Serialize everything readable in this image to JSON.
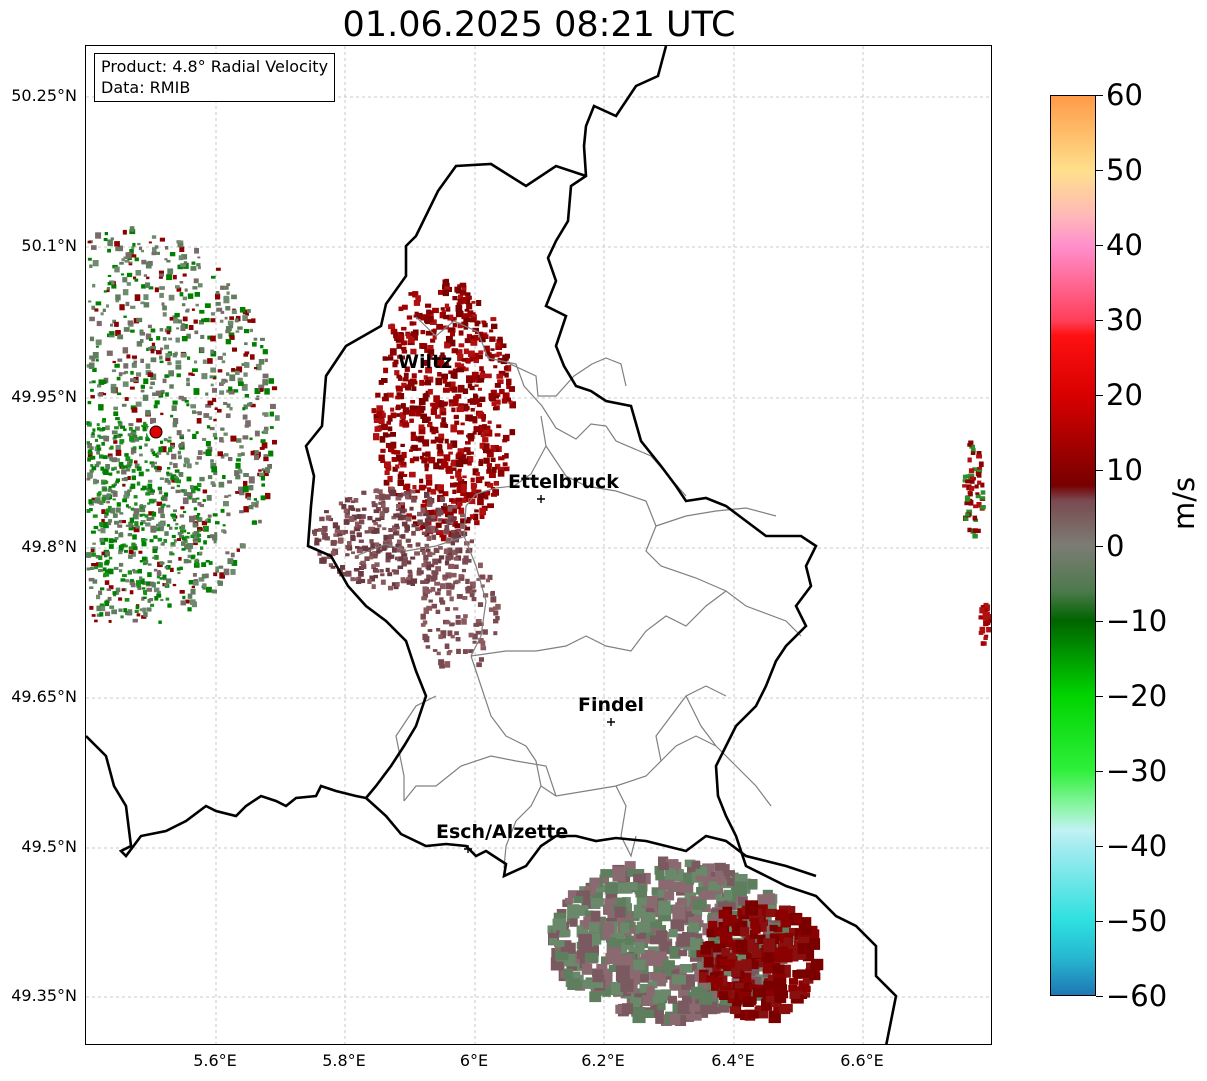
{
  "title": "01.06.2025 08:21 UTC",
  "infobox": {
    "product": "Product: 4.8° Radial Velocity",
    "source": "Data: RMIB"
  },
  "axes": {
    "lat_labels": [
      "50.25°N",
      "50.1°N",
      "49.95°N",
      "49.8°N",
      "49.65°N",
      "49.5°N",
      "49.35°N"
    ],
    "lon_labels": [
      "5.6°E",
      "5.8°E",
      "6°E",
      "6.2°E",
      "6.4°E",
      "6.6°E"
    ]
  },
  "cities": [
    {
      "name": "Wiltz"
    },
    {
      "name": "Ettelbruck"
    },
    {
      "name": "Findel"
    },
    {
      "name": "Esch/Alzette"
    }
  ],
  "colorbar": {
    "unit": "m/s",
    "min": -60,
    "max": 60,
    "tick_labels": [
      "60",
      "50",
      "40",
      "30",
      "20",
      "10",
      "0",
      "−10",
      "−20",
      "−30",
      "−40",
      "−50",
      "−60"
    ],
    "stops": [
      {
        "v": -60,
        "c": "#1f77b4"
      },
      {
        "v": -55,
        "c": "#26b8d0"
      },
      {
        "v": -50,
        "c": "#2fe0e0"
      },
      {
        "v": -40,
        "c": "#a6ecf0"
      },
      {
        "v": -38,
        "c": "#c2f2f4"
      },
      {
        "v": -35,
        "c": "#8ef5a8"
      },
      {
        "v": -30,
        "c": "#2ef03a"
      },
      {
        "v": -20,
        "c": "#00d400"
      },
      {
        "v": -10,
        "c": "#006400"
      },
      {
        "v": -6,
        "c": "#4e7a4e"
      },
      {
        "v": 0,
        "c": "#7c7c74"
      },
      {
        "v": 6,
        "c": "#7a4a50"
      },
      {
        "v": 8,
        "c": "#780000"
      },
      {
        "v": 20,
        "c": "#d80000"
      },
      {
        "v": 28,
        "c": "#ff1010"
      },
      {
        "v": 30,
        "c": "#ff3f5a"
      },
      {
        "v": 40,
        "c": "#ff8fcc"
      },
      {
        "v": 44,
        "c": "#ffb8b8"
      },
      {
        "v": 50,
        "c": "#ffe08c"
      },
      {
        "v": 60,
        "c": "#ff9a48"
      }
    ]
  },
  "colors": {
    "border": "#000000",
    "district_lines": "#808080",
    "gridlines": "#bbbbbb",
    "radar_site": "#e00000",
    "velocity_inbound": "#008000",
    "velocity_near_zero": "#7a6a6a",
    "velocity_outbound": "#8b0000"
  }
}
